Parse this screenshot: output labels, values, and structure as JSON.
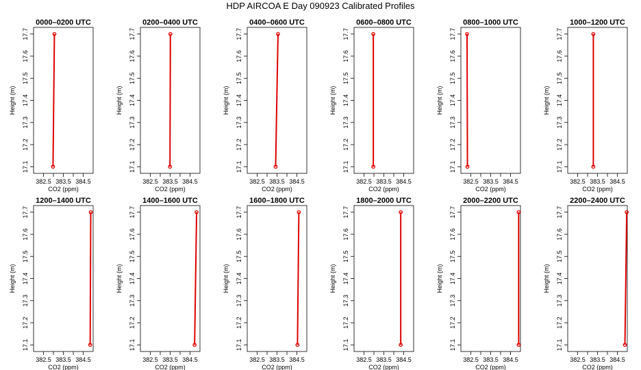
{
  "page": {
    "title": "HDP AIRCOA E  Day 090923  Calibrated Profiles"
  },
  "chart_data": [
    {
      "type": "line",
      "title": "0000–0200 UTC",
      "xlabel": "CO2 (ppm)",
      "ylabel": "Height (m)",
      "x_ticks": [
        "382.5",
        "383.5",
        "384.5"
      ],
      "y_ticks": [
        "17.1",
        "17.2",
        "17.3",
        "17.4",
        "17.5",
        "17.6",
        "17.7"
      ],
      "xlim": [
        382.0,
        385.0
      ],
      "ylim": [
        17.07,
        17.73
      ],
      "grid": false,
      "series": [
        {
          "points": [
            {
              "x": 382.98,
              "y": 17.1
            },
            {
              "x": 383.05,
              "y": 17.7
            }
          ]
        }
      ]
    },
    {
      "type": "line",
      "title": "0200–0400 UTC",
      "xlabel": "CO2 (ppm)",
      "ylabel": "Height (m)",
      "x_ticks": [
        "382.5",
        "383.5",
        "384.5"
      ],
      "y_ticks": [
        "17.1",
        "17.2",
        "17.3",
        "17.4",
        "17.5",
        "17.6",
        "17.7"
      ],
      "xlim": [
        382.0,
        385.0
      ],
      "ylim": [
        17.07,
        17.73
      ],
      "grid": false,
      "series": [
        {
          "points": [
            {
              "x": 383.49,
              "y": 17.1
            },
            {
              "x": 383.51,
              "y": 17.7
            }
          ]
        }
      ]
    },
    {
      "type": "line",
      "title": "0400–0600 UTC",
      "xlabel": "CO2 (ppm)",
      "ylabel": "Height (m)",
      "x_ticks": [
        "382.5",
        "383.5",
        "384.5"
      ],
      "y_ticks": [
        "17.1",
        "17.2",
        "17.3",
        "17.4",
        "17.5",
        "17.6",
        "17.7"
      ],
      "xlim": [
        382.0,
        385.0
      ],
      "ylim": [
        17.07,
        17.73
      ],
      "grid": false,
      "series": [
        {
          "points": [
            {
              "x": 383.43,
              "y": 17.1
            },
            {
              "x": 383.55,
              "y": 17.7
            }
          ]
        }
      ]
    },
    {
      "type": "line",
      "title": "0600–0800 UTC",
      "xlabel": "CO2 (ppm)",
      "ylabel": "Height (m)",
      "x_ticks": [
        "382.5",
        "383.5",
        "384.5"
      ],
      "y_ticks": [
        "17.1",
        "17.2",
        "17.3",
        "17.4",
        "17.5",
        "17.6",
        "17.7"
      ],
      "xlim": [
        382.0,
        385.0
      ],
      "ylim": [
        17.07,
        17.73
      ],
      "grid": false,
      "series": [
        {
          "points": [
            {
              "x": 382.97,
              "y": 17.1
            },
            {
              "x": 382.97,
              "y": 17.7
            }
          ]
        }
      ]
    },
    {
      "type": "line",
      "title": "0800–1000 UTC",
      "xlabel": "CO2 (ppm)",
      "ylabel": "Height (m)",
      "x_ticks": [
        "382.5",
        "383.5",
        "384.5"
      ],
      "y_ticks": [
        "17.1",
        "17.2",
        "17.3",
        "17.4",
        "17.5",
        "17.6",
        "17.7"
      ],
      "xlim": [
        382.0,
        385.0
      ],
      "ylim": [
        17.07,
        17.73
      ],
      "grid": false,
      "series": [
        {
          "points": [
            {
              "x": 382.33,
              "y": 17.1
            },
            {
              "x": 382.31,
              "y": 17.7
            }
          ]
        }
      ]
    },
    {
      "type": "line",
      "title": "1000–1200 UTC",
      "xlabel": "CO2 (ppm)",
      "ylabel": "Height (m)",
      "x_ticks": [
        "382.5",
        "383.5",
        "384.5"
      ],
      "y_ticks": [
        "17.1",
        "17.2",
        "17.3",
        "17.4",
        "17.5",
        "17.6",
        "17.7"
      ],
      "xlim": [
        382.0,
        385.0
      ],
      "ylim": [
        17.07,
        17.73
      ],
      "grid": false,
      "series": [
        {
          "points": [
            {
              "x": 383.29,
              "y": 17.1
            },
            {
              "x": 383.29,
              "y": 17.7
            }
          ]
        }
      ]
    },
    {
      "type": "line",
      "title": "1200–1400 UTC",
      "xlabel": "CO2 (ppm)",
      "ylabel": "Height (m)",
      "x_ticks": [
        "382.5",
        "383.5",
        "384.5"
      ],
      "y_ticks": [
        "17.1",
        "17.2",
        "17.3",
        "17.4",
        "17.5",
        "17.6",
        "17.7"
      ],
      "xlim": [
        382.0,
        385.0
      ],
      "ylim": [
        17.07,
        17.73
      ],
      "grid": false,
      "series": [
        {
          "points": [
            {
              "x": 384.85,
              "y": 17.1
            },
            {
              "x": 384.88,
              "y": 17.7
            }
          ]
        }
      ]
    },
    {
      "type": "line",
      "title": "1400–1600 UTC",
      "xlabel": "CO2 (ppm)",
      "ylabel": "Height (m)",
      "x_ticks": [
        "382.5",
        "383.5",
        "384.5"
      ],
      "y_ticks": [
        "17.1",
        "17.2",
        "17.3",
        "17.4",
        "17.5",
        "17.6",
        "17.7"
      ],
      "xlim": [
        382.0,
        385.0
      ],
      "ylim": [
        17.07,
        17.73
      ],
      "grid": false,
      "series": [
        {
          "points": [
            {
              "x": 384.73,
              "y": 17.1
            },
            {
              "x": 384.83,
              "y": 17.7
            }
          ]
        }
      ]
    },
    {
      "type": "line",
      "title": "1600–1800 UTC",
      "xlabel": "CO2 (ppm)",
      "ylabel": "Height (m)",
      "x_ticks": [
        "382.5",
        "383.5",
        "384.5"
      ],
      "y_ticks": [
        "17.1",
        "17.2",
        "17.3",
        "17.4",
        "17.5",
        "17.6",
        "17.7"
      ],
      "xlim": [
        382.0,
        385.0
      ],
      "ylim": [
        17.07,
        17.73
      ],
      "grid": false,
      "series": [
        {
          "points": [
            {
              "x": 384.53,
              "y": 17.1
            },
            {
              "x": 384.6,
              "y": 17.7
            }
          ]
        }
      ]
    },
    {
      "type": "line",
      "title": "1800–2000 UTC",
      "xlabel": "CO2 (ppm)",
      "ylabel": "Height (m)",
      "x_ticks": [
        "382.5",
        "383.5",
        "384.5"
      ],
      "y_ticks": [
        "17.1",
        "17.2",
        "17.3",
        "17.4",
        "17.5",
        "17.6",
        "17.7"
      ],
      "xlim": [
        382.0,
        385.0
      ],
      "ylim": [
        17.07,
        17.73
      ],
      "grid": false,
      "series": [
        {
          "points": [
            {
              "x": 384.35,
              "y": 17.1
            },
            {
              "x": 384.35,
              "y": 17.7
            }
          ]
        }
      ]
    },
    {
      "type": "line",
      "title": "2000–2200 UTC",
      "xlabel": "CO2 (ppm)",
      "ylabel": "Height (m)",
      "x_ticks": [
        "382.5",
        "383.5",
        "384.5"
      ],
      "y_ticks": [
        "17.1",
        "17.2",
        "17.3",
        "17.4",
        "17.5",
        "17.6",
        "17.7"
      ],
      "xlim": [
        382.0,
        385.0
      ],
      "ylim": [
        17.07,
        17.73
      ],
      "grid": false,
      "series": [
        {
          "points": [
            {
              "x": 384.91,
              "y": 17.1
            },
            {
              "x": 384.91,
              "y": 17.7
            }
          ]
        }
      ]
    },
    {
      "type": "line",
      "title": "2200–2400 UTC",
      "xlabel": "CO2 (ppm)",
      "ylabel": "Height (m)",
      "x_ticks": [
        "382.5",
        "383.5",
        "384.5"
      ],
      "y_ticks": [
        "17.1",
        "17.2",
        "17.3",
        "17.4",
        "17.5",
        "17.6",
        "17.7"
      ],
      "xlim": [
        382.0,
        385.0
      ],
      "ylim": [
        17.07,
        17.73
      ],
      "grid": false,
      "series": [
        {
          "points": [
            {
              "x": 384.88,
              "y": 17.1
            },
            {
              "x": 384.97,
              "y": 17.7
            }
          ]
        }
      ]
    }
  ],
  "style": {
    "line_color": "#dd0000",
    "marker_color": "#dd0000",
    "axis_color": "#000000"
  }
}
